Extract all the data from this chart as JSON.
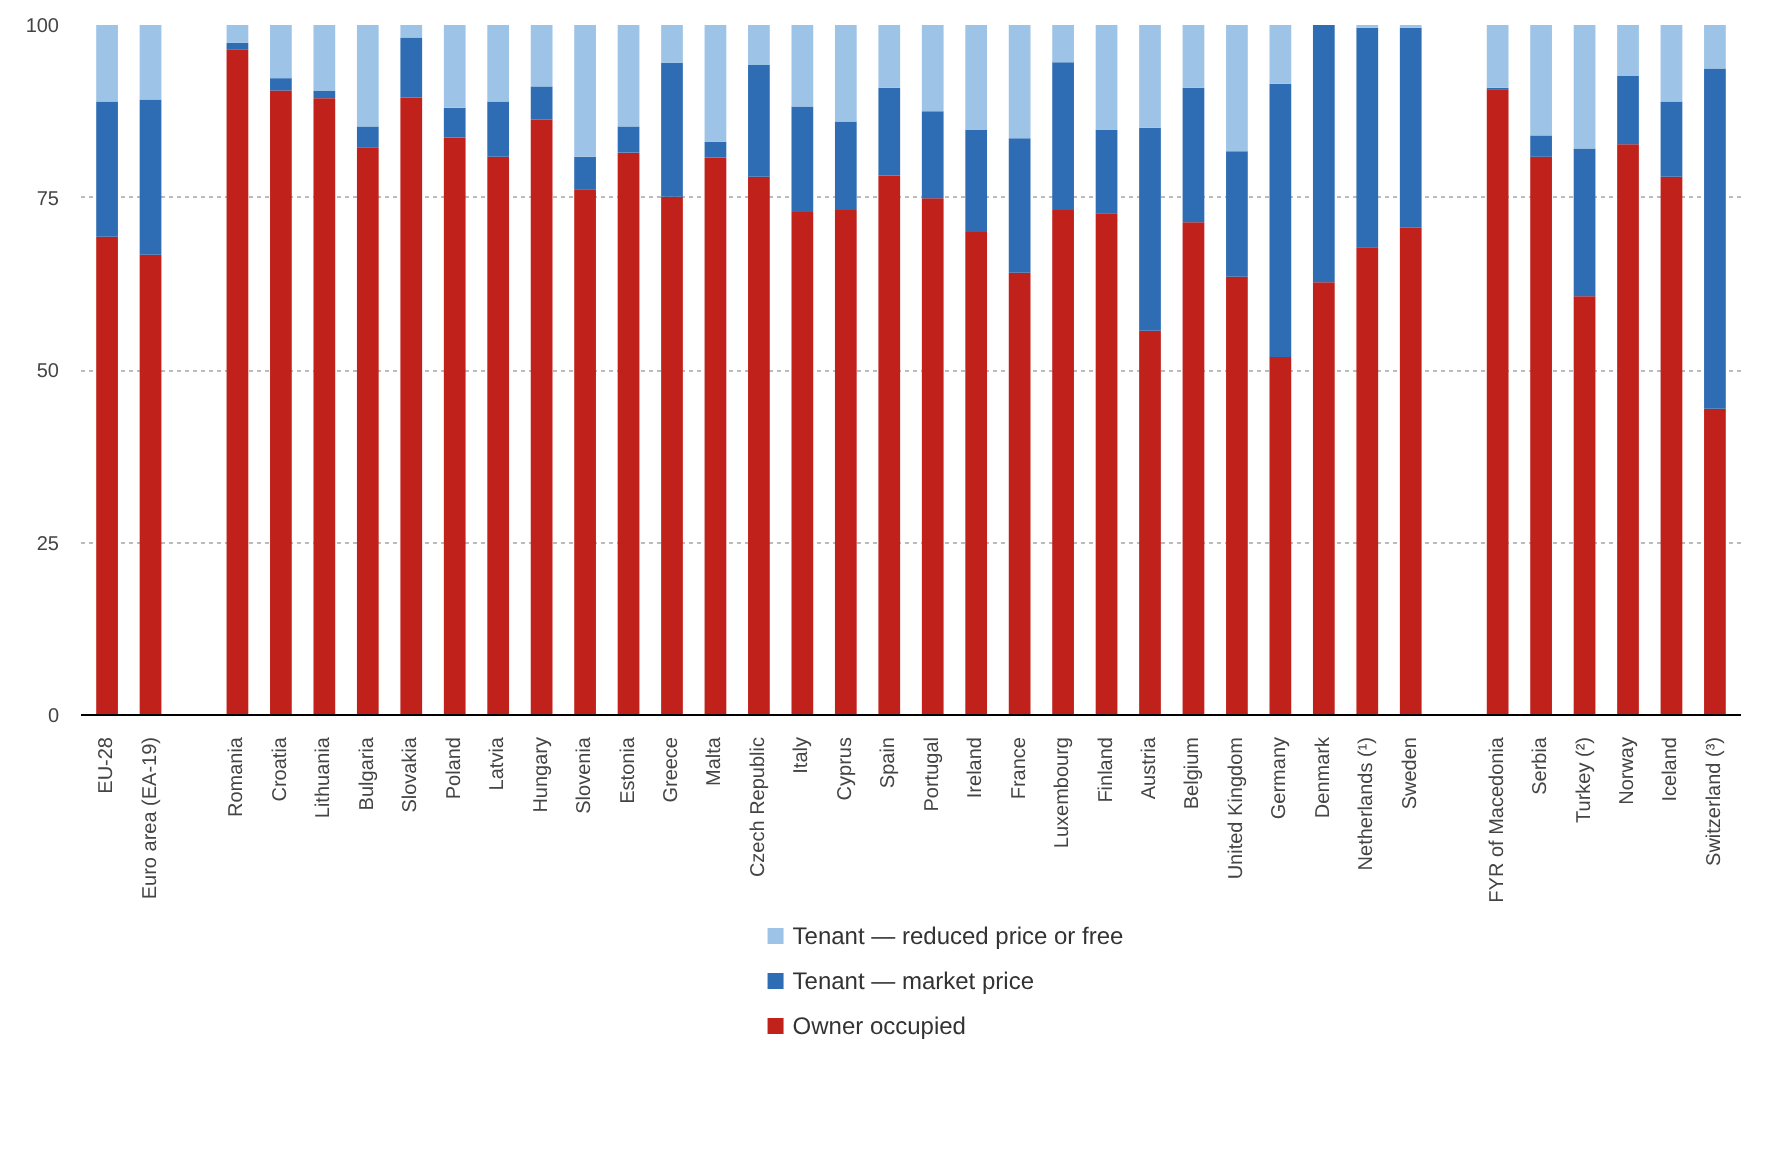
{
  "chart_data": {
    "type": "bar",
    "stacked": true,
    "categories": [
      "EU-28",
      "Euro area (EA-19)",
      null,
      "Romania",
      "Croatia",
      "Lithuania",
      "Bulgaria",
      "Slovakia",
      "Poland",
      "Latvia",
      "Hungary",
      "Slovenia",
      "Estonia",
      "Greece",
      "Malta",
      "Czech Republic",
      "Italy",
      "Cyprus",
      "Spain",
      "Portugal",
      "Ireland",
      "France",
      "Luxembourg",
      "Finland",
      "Austria",
      "Belgium",
      "United Kingdom",
      "Germany",
      "Denmark",
      "Netherlands (¹)",
      "Sweden",
      null,
      "FYR of Macedonia",
      "Serbia",
      "Turkey (²)",
      "Norway",
      "Iceland",
      "Switzerland (³)"
    ],
    "series": [
      {
        "name": "Owner occupied",
        "color": "#c0211a",
        "values": [
          69.3,
          66.7,
          null,
          96.5,
          90.5,
          89.4,
          82.3,
          89.5,
          83.7,
          80.9,
          86.3,
          76.2,
          81.5,
          75.1,
          80.8,
          78.0,
          72.9,
          73.2,
          78.2,
          74.9,
          70.0,
          64.1,
          73.2,
          72.7,
          55.7,
          71.4,
          63.5,
          51.9,
          62.7,
          67.8,
          70.6,
          null,
          90.6,
          80.9,
          60.7,
          82.7,
          78.0,
          44.4
        ]
      },
      {
        "name": "Tenant — market price",
        "color": "#2e6db4",
        "values": [
          19.6,
          22.5,
          null,
          0.9,
          1.8,
          1.1,
          3.0,
          8.7,
          4.3,
          8.0,
          4.8,
          4.7,
          3.8,
          19.4,
          2.3,
          16.2,
          15.3,
          12.8,
          12.7,
          12.6,
          14.8,
          19.5,
          21.4,
          12.1,
          29.4,
          19.5,
          18.2,
          39.6,
          37.3,
          31.8,
          29.0,
          null,
          0.3,
          3.1,
          21.4,
          9.9,
          10.9,
          49.3
        ]
      },
      {
        "name": "Tenant — reduced price or free",
        "color": "#9dc3e6",
        "values": [
          11.1,
          10.8,
          null,
          2.6,
          7.7,
          9.5,
          14.7,
          1.8,
          12.0,
          11.1,
          8.9,
          19.1,
          14.7,
          5.5,
          16.9,
          5.8,
          11.8,
          14.0,
          9.1,
          12.5,
          15.2,
          16.4,
          5.4,
          15.2,
          14.9,
          9.1,
          18.3,
          8.5,
          0.0,
          0.4,
          0.4,
          null,
          9.1,
          16.0,
          17.9,
          7.4,
          11.1,
          6.3
        ]
      }
    ],
    "ylim": [
      0,
      100
    ],
    "yticks": [
      0,
      25,
      50,
      75,
      100
    ],
    "grid": "y",
    "legend": "bottom"
  }
}
